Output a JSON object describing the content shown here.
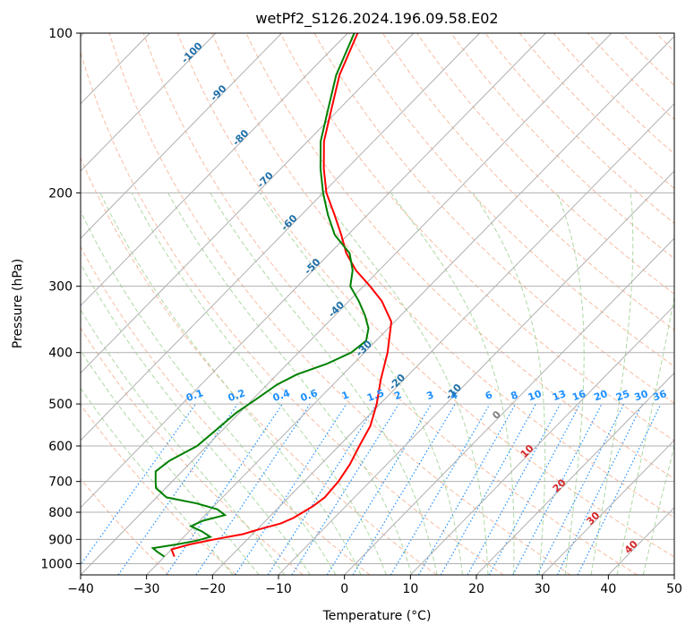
{
  "chart_data": {
    "type": "skew-t log-p",
    "title": "wetPf2_S126.2024.196.09.58.E02",
    "xlabel": "Temperature (°C)",
    "ylabel": "Pressure (hPa)",
    "xlim": [
      -40,
      50
    ],
    "ylim": [
      1050,
      100
    ],
    "y_scale": "log",
    "x_ticks": [
      -40,
      -30,
      -20,
      -10,
      0,
      10,
      20,
      30,
      40,
      50
    ],
    "y_ticks": [
      100,
      200,
      300,
      400,
      500,
      600,
      700,
      800,
      900,
      1000
    ],
    "grid": true,
    "series": [
      {
        "color": "#ff0000",
        "points": [
          [
            970,
            -28.5
          ],
          [
            940,
            -30.0
          ],
          [
            920,
            -28.0
          ],
          [
            900,
            -25.0
          ],
          [
            880,
            -21.5
          ],
          [
            860,
            -19.5
          ],
          [
            840,
            -17.3
          ],
          [
            820,
            -16.2
          ],
          [
            800,
            -15.6
          ],
          [
            780,
            -15.0
          ],
          [
            750,
            -14.5
          ],
          [
            700,
            -14.8
          ],
          [
            650,
            -15.6
          ],
          [
            600,
            -16.9
          ],
          [
            550,
            -18.2
          ],
          [
            500,
            -20.5
          ],
          [
            450,
            -23.5
          ],
          [
            400,
            -26.5
          ],
          [
            350,
            -30.5
          ],
          [
            320,
            -35.0
          ],
          [
            300,
            -39.0
          ],
          [
            280,
            -43.5
          ],
          [
            260,
            -47.5
          ],
          [
            240,
            -51.0
          ],
          [
            220,
            -55.0
          ],
          [
            200,
            -59.5
          ],
          [
            180,
            -63.5
          ],
          [
            160,
            -67.5
          ],
          [
            140,
            -71.0
          ],
          [
            120,
            -75.0
          ],
          [
            100,
            -78.5
          ]
        ]
      },
      {
        "color": "#008000",
        "points": [
          [
            970,
            -30.0
          ],
          [
            950,
            -31.8
          ],
          [
            935,
            -33.0
          ],
          [
            920,
            -30.0
          ],
          [
            905,
            -27.5
          ],
          [
            890,
            -26.0
          ],
          [
            870,
            -28.0
          ],
          [
            850,
            -30.5
          ],
          [
            830,
            -29.5
          ],
          [
            810,
            -27.0
          ],
          [
            790,
            -29.0
          ],
          [
            770,
            -33.0
          ],
          [
            750,
            -38.5
          ],
          [
            720,
            -41.5
          ],
          [
            700,
            -42.5
          ],
          [
            670,
            -44.0
          ],
          [
            640,
            -43.5
          ],
          [
            600,
            -41.5
          ],
          [
            560,
            -41.0
          ],
          [
            520,
            -40.5
          ],
          [
            490,
            -39.5
          ],
          [
            460,
            -38.5
          ],
          [
            440,
            -37.0
          ],
          [
            420,
            -34.0
          ],
          [
            400,
            -32.0
          ],
          [
            380,
            -31.5
          ],
          [
            360,
            -33.0
          ],
          [
            340,
            -35.5
          ],
          [
            320,
            -38.5
          ],
          [
            300,
            -42.0
          ],
          [
            280,
            -44.0
          ],
          [
            260,
            -47.0
          ],
          [
            240,
            -52.0
          ],
          [
            220,
            -56.0
          ],
          [
            200,
            -60.0
          ],
          [
            180,
            -64.0
          ],
          [
            160,
            -68.0
          ],
          [
            140,
            -71.5
          ],
          [
            120,
            -75.5
          ],
          [
            100,
            -79.0
          ]
        ]
      }
    ],
    "isotherm_labels": [
      "-100",
      "-90",
      "-80",
      "-70",
      "-60",
      "-50",
      "-40",
      "-30",
      "-20",
      "-10"
    ],
    "mixing_ratio_labels": [
      "0.1",
      "0.2",
      "0.4",
      "0.6",
      "1",
      "1.5",
      "2",
      "3",
      "4",
      "6",
      "8",
      "10",
      "13",
      "16",
      "20",
      "25",
      "30",
      "36"
    ],
    "freezing_label": "0",
    "isotherm_positive_labels": [
      "10",
      "20",
      "30",
      "40"
    ],
    "colors": {
      "temperature": "#ff0000",
      "dewpoint": "#008000",
      "isotherm_label": "#1f6fa8",
      "mixing_ratio": "#1e90ff",
      "positive_isotherm_label": "#d62728",
      "dry_adiabat": "#f4a582",
      "moist_adiabat": "#98d08c"
    }
  }
}
